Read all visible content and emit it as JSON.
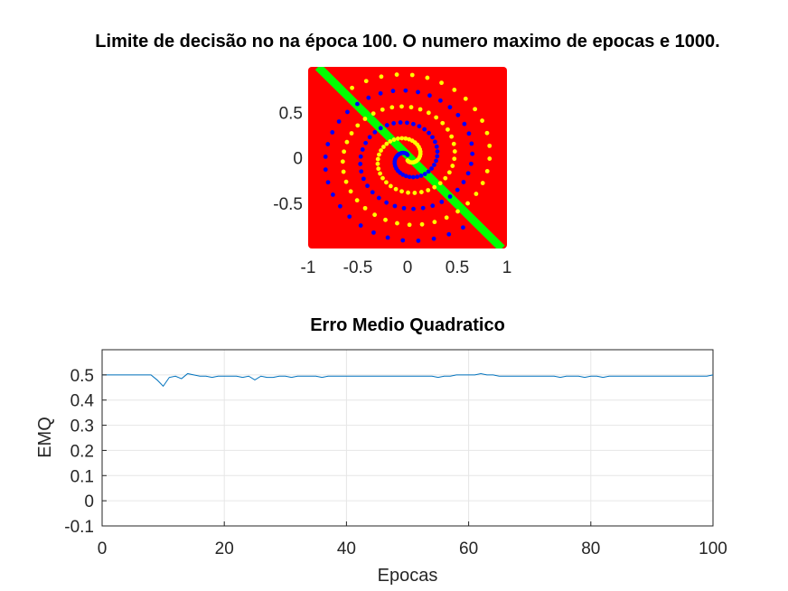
{
  "colors": {
    "class_region": "#ff0000",
    "boundary": "#00ff00",
    "class_a": "#0000ff",
    "class_b": "#ffff00",
    "line": "#0072bd",
    "grid": "#e6e6e6",
    "axis": "#262626"
  },
  "chart_data": [
    {
      "type": "scatter",
      "title": "Limite de decisão no na época 100. O numero maximo de epocas e 1000.",
      "xlabel": "",
      "ylabel": "",
      "xlim": [
        -1.0,
        1.0
      ],
      "ylim": [
        -1.0,
        1.0
      ],
      "xticks": [
        -1,
        -0.5,
        0,
        0.5,
        1
      ],
      "xtick_labels": [
        "-1",
        "-0.5",
        "0",
        "0.5",
        "1"
      ],
      "yticks": [
        -0.5,
        0,
        0.5
      ],
      "ytick_labels": [
        "-0.5",
        "0",
        "0.5"
      ],
      "background_region": "class_region",
      "decision_boundary": {
        "from": [
          -0.9,
          1.0
        ],
        "to": [
          0.95,
          -1.0
        ]
      },
      "series": [
        {
          "color": "#0000ff",
          "pattern": "two-arm spiral, arm 1",
          "turns": 2.6,
          "r_max": 0.92,
          "points_per_arm": 97
        },
        {
          "color": "#ffff00",
          "pattern": "two-arm spiral, arm 2",
          "turns": 2.6,
          "r_max": 0.92,
          "points_per_arm": 97
        }
      ]
    },
    {
      "type": "line",
      "title": "Erro Medio Quadratico",
      "xlabel": "Epocas",
      "ylabel": "EMQ",
      "xlim": [
        0,
        100
      ],
      "ylim": [
        -0.1,
        0.6
      ],
      "xticks": [
        0,
        20,
        40,
        60,
        80,
        100
      ],
      "xtick_labels": [
        "0",
        "20",
        "40",
        "60",
        "80",
        "100"
      ],
      "yticks": [
        -0.1,
        0,
        0.1,
        0.2,
        0.3,
        0.4,
        0.5
      ],
      "ytick_labels": [
        "-0.1",
        "0",
        "0.1",
        "0.2",
        "0.3",
        "0.4",
        "0.5"
      ],
      "grid": true,
      "x": [
        0,
        1,
        2,
        3,
        4,
        5,
        6,
        7,
        8,
        9,
        10,
        11,
        12,
        13,
        14,
        15,
        16,
        17,
        18,
        19,
        20,
        21,
        22,
        23,
        24,
        25,
        26,
        27,
        28,
        29,
        30,
        31,
        32,
        33,
        34,
        35,
        36,
        37,
        38,
        39,
        40,
        41,
        42,
        43,
        44,
        45,
        46,
        47,
        48,
        49,
        50,
        51,
        52,
        53,
        54,
        55,
        56,
        57,
        58,
        59,
        60,
        61,
        62,
        63,
        64,
        65,
        66,
        67,
        68,
        69,
        70,
        71,
        72,
        73,
        74,
        75,
        76,
        77,
        78,
        79,
        80,
        81,
        82,
        83,
        84,
        85,
        86,
        87,
        88,
        89,
        90,
        91,
        92,
        93,
        94,
        95,
        96,
        97,
        98,
        99,
        100
      ],
      "y": [
        0.5,
        0.5,
        0.5,
        0.5,
        0.5,
        0.5,
        0.5,
        0.5,
        0.5,
        0.48,
        0.455,
        0.49,
        0.495,
        0.485,
        0.505,
        0.5,
        0.495,
        0.495,
        0.49,
        0.495,
        0.495,
        0.495,
        0.495,
        0.49,
        0.495,
        0.48,
        0.495,
        0.49,
        0.49,
        0.495,
        0.495,
        0.49,
        0.495,
        0.495,
        0.495,
        0.495,
        0.49,
        0.495,
        0.495,
        0.495,
        0.495,
        0.495,
        0.495,
        0.495,
        0.495,
        0.495,
        0.495,
        0.495,
        0.495,
        0.495,
        0.495,
        0.495,
        0.495,
        0.495,
        0.495,
        0.49,
        0.495,
        0.495,
        0.5,
        0.5,
        0.5,
        0.5,
        0.505,
        0.5,
        0.5,
        0.495,
        0.495,
        0.495,
        0.495,
        0.495,
        0.495,
        0.495,
        0.495,
        0.495,
        0.495,
        0.49,
        0.495,
        0.495,
        0.495,
        0.49,
        0.495,
        0.495,
        0.49,
        0.495,
        0.495,
        0.495,
        0.495,
        0.495,
        0.495,
        0.495,
        0.495,
        0.495,
        0.495,
        0.495,
        0.495,
        0.495,
        0.495,
        0.495,
        0.495,
        0.495,
        0.5
      ]
    }
  ]
}
